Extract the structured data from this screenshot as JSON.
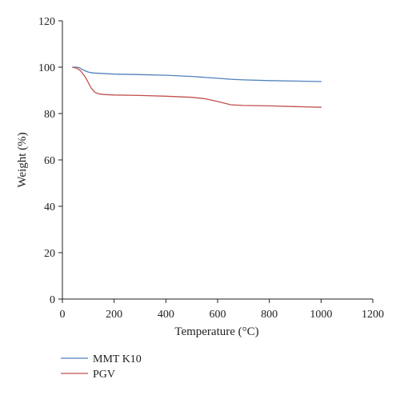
{
  "chart_data": {
    "type": "line",
    "xlabel": "Temperature (°C)",
    "ylabel": "Weight (%)",
    "xlim": [
      0,
      1200
    ],
    "ylim": [
      0,
      120
    ],
    "xticks": [
      0,
      200,
      400,
      600,
      800,
      1000,
      1200
    ],
    "yticks": [
      0,
      20,
      40,
      60,
      80,
      100,
      120
    ],
    "xtick_labels": [
      "0",
      "200",
      "400",
      "600",
      "800",
      "1000",
      "1200"
    ],
    "ytick_labels": [
      "0",
      "20",
      "40",
      "60",
      "80",
      "100",
      "120"
    ],
    "grid": false,
    "legend_position": "bottom-left",
    "series": [
      {
        "name": "MMT K10",
        "color": "#4f81bd",
        "x": [
          40,
          55,
          65,
          80,
          100,
          120,
          150,
          200,
          300,
          400,
          500,
          600,
          650,
          700,
          800,
          900,
          1000
        ],
        "y": [
          100,
          100,
          99.8,
          98.8,
          97.9,
          97.5,
          97.3,
          97.0,
          96.8,
          96.5,
          96.0,
          95.2,
          94.8,
          94.5,
          94.2,
          94.0,
          93.8
        ]
      },
      {
        "name": "PGV",
        "color": "#c0504d",
        "x": [
          40,
          55,
          70,
          90,
          110,
          125,
          140,
          160,
          200,
          300,
          400,
          500,
          550,
          600,
          650,
          700,
          800,
          900,
          1000
        ],
        "y": [
          100,
          99.6,
          98.5,
          95.5,
          91.2,
          89.2,
          88.5,
          88.2,
          88.0,
          87.8,
          87.5,
          87.0,
          86.4,
          85.2,
          83.8,
          83.5,
          83.3,
          83.0,
          82.7
        ]
      }
    ]
  }
}
